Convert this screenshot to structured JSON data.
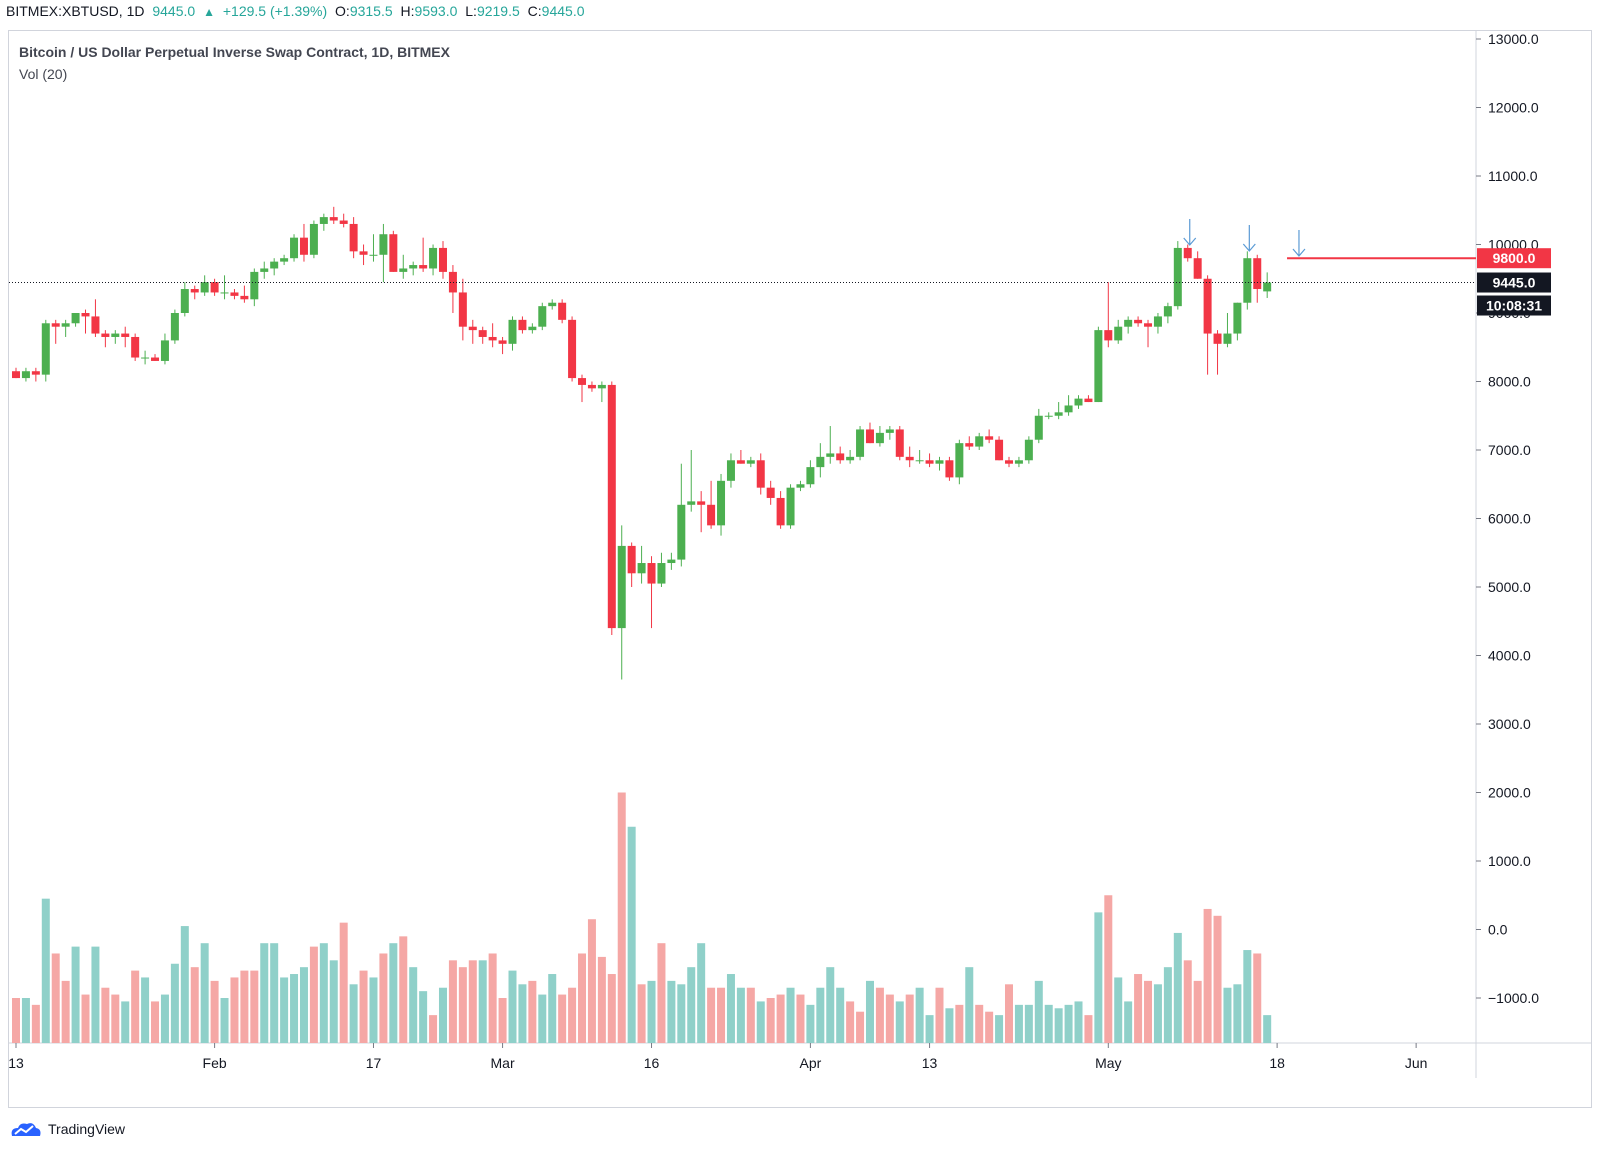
{
  "header": {
    "symbol": "BITMEX:XBTUSD, 1D",
    "last": "9445.0",
    "change": "+129.5 (+1.39%)",
    "o_label": "O:",
    "o": "9315.5",
    "h_label": "H:",
    "h": "9593.0",
    "l_label": "L:",
    "l": "9219.5",
    "c_label": "C:",
    "c": "9445.0"
  },
  "chart_title": "Bitcoin / US Dollar Perpetual Inverse Swap Contract, 1D, BITMEX",
  "volume_label": "Vol (20)",
  "brand": "TradingView",
  "colors": {
    "up": "#4caf50",
    "down": "#f23645",
    "vol_up": "#8fd0c9",
    "vol_down": "#f5a7a5",
    "line": "#f23645",
    "arrow": "#5b9bd5"
  },
  "chart_data": {
    "type": "candlestick",
    "title": "Bitcoin / US Dollar Perpetual Inverse Swap Contract, 1D, BITMEX",
    "y_ticks": [
      "13000.0",
      "12000.0",
      "11000.0",
      "10000.0",
      "9000.0",
      "8000.0",
      "7000.0",
      "6000.0",
      "5000.0",
      "4000.0",
      "3000.0",
      "2000.0",
      "1000.0",
      "0.0",
      "−1000.0"
    ],
    "x_ticks": [
      "13",
      "Feb",
      "17",
      "Mar",
      "16",
      "Apr",
      "13",
      "May",
      "18",
      "Jun"
    ],
    "ylim": [
      -1000,
      13000
    ],
    "candles": [
      [
        8150,
        8200,
        8050,
        8050
      ],
      [
        8050,
        8200,
        8000,
        8150
      ],
      [
        8150,
        8200,
        8000,
        8100
      ],
      [
        8100,
        8900,
        8000,
        8850
      ],
      [
        8850,
        8900,
        8550,
        8800
      ],
      [
        8800,
        8900,
        8650,
        8850
      ],
      [
        8850,
        9000,
        8800,
        9000
      ],
      [
        9000,
        9050,
        8700,
        8950
      ],
      [
        8950,
        9200,
        8650,
        8700
      ],
      [
        8700,
        8750,
        8500,
        8650
      ],
      [
        8650,
        8750,
        8550,
        8700
      ],
      [
        8700,
        8800,
        8500,
        8650
      ],
      [
        8650,
        8700,
        8300,
        8350
      ],
      [
        8350,
        8450,
        8250,
        8350
      ],
      [
        8350,
        8400,
        8300,
        8300
      ],
      [
        8300,
        8700,
        8250,
        8600
      ],
      [
        8600,
        9050,
        8550,
        9000
      ],
      [
        9000,
        9450,
        8950,
        9350
      ],
      [
        9350,
        9400,
        9200,
        9300
      ],
      [
        9300,
        9550,
        9250,
        9450
      ],
      [
        9450,
        9500,
        9250,
        9300
      ],
      [
        9300,
        9550,
        9200,
        9300
      ],
      [
        9300,
        9350,
        9200,
        9250
      ],
      [
        9250,
        9400,
        9150,
        9200
      ],
      [
        9200,
        9650,
        9100,
        9600
      ],
      [
        9600,
        9750,
        9500,
        9650
      ],
      [
        9650,
        9800,
        9550,
        9750
      ],
      [
        9750,
        9850,
        9700,
        9800
      ],
      [
        9800,
        10150,
        9750,
        10100
      ],
      [
        10100,
        10300,
        9750,
        9850
      ],
      [
        9850,
        10350,
        9800,
        10300
      ],
      [
        10300,
        10450,
        10200,
        10400
      ],
      [
        10400,
        10550,
        10300,
        10350
      ],
      [
        10350,
        10450,
        10250,
        10300
      ],
      [
        10300,
        10400,
        9800,
        9900
      ],
      [
        9900,
        10000,
        9700,
        9850
      ],
      [
        9850,
        10150,
        9750,
        9850
      ],
      [
        9850,
        10300,
        9450,
        10150
      ],
      [
        10150,
        10200,
        9600,
        9600
      ],
      [
        9600,
        9850,
        9500,
        9650
      ],
      [
        9650,
        9750,
        9550,
        9700
      ],
      [
        9700,
        10100,
        9600,
        9650
      ],
      [
        9650,
        10000,
        9550,
        9950
      ],
      [
        9950,
        10050,
        9500,
        9600
      ],
      [
        9600,
        9700,
        9000,
        9300
      ],
      [
        9300,
        9500,
        8600,
        8800
      ],
      [
        8800,
        8900,
        8550,
        8750
      ],
      [
        8750,
        8800,
        8550,
        8650
      ],
      [
        8650,
        8850,
        8500,
        8600
      ],
      [
        8600,
        8650,
        8400,
        8550
      ],
      [
        8550,
        8950,
        8450,
        8900
      ],
      [
        8900,
        8950,
        8700,
        8750
      ],
      [
        8750,
        8850,
        8700,
        8800
      ],
      [
        8800,
        9150,
        8750,
        9100
      ],
      [
        9100,
        9200,
        9050,
        9150
      ],
      [
        9150,
        9200,
        8850,
        8900
      ],
      [
        8900,
        8950,
        8000,
        8050
      ],
      [
        8050,
        8100,
        7700,
        7950
      ],
      [
        7950,
        8000,
        7850,
        7900
      ],
      [
        7900,
        8000,
        7700,
        7950
      ],
      [
        7950,
        8000,
        4300,
        4400
      ],
      [
        4400,
        5900,
        3650,
        5600
      ],
      [
        5600,
        5650,
        5000,
        5200
      ],
      [
        5200,
        5600,
        5050,
        5350
      ],
      [
        5350,
        5450,
        4400,
        5050
      ],
      [
        5050,
        5500,
        5000,
        5350
      ],
      [
        5350,
        5500,
        5250,
        5400
      ],
      [
        5400,
        6800,
        5300,
        6200
      ],
      [
        6200,
        7000,
        6100,
        6250
      ],
      [
        6250,
        6400,
        5800,
        6200
      ],
      [
        6200,
        6550,
        5850,
        5900
      ],
      [
        5900,
        6650,
        5750,
        6550
      ],
      [
        6550,
        6950,
        6450,
        6850
      ],
      [
        6850,
        7000,
        6800,
        6800
      ],
      [
        6800,
        6900,
        6750,
        6850
      ],
      [
        6850,
        6950,
        6350,
        6450
      ],
      [
        6450,
        6550,
        6200,
        6300
      ],
      [
        6300,
        6400,
        5850,
        5900
      ],
      [
        5900,
        6500,
        5850,
        6450
      ],
      [
        6450,
        6550,
        6400,
        6500
      ],
      [
        6500,
        6850,
        6450,
        6750
      ],
      [
        6750,
        7100,
        6600,
        6900
      ],
      [
        6900,
        7350,
        6800,
        6950
      ],
      [
        6950,
        7050,
        6800,
        6850
      ],
      [
        6850,
        7000,
        6800,
        6900
      ],
      [
        6900,
        7350,
        6850,
        7300
      ],
      [
        7300,
        7400,
        7100,
        7100
      ],
      [
        7100,
        7350,
        7050,
        7250
      ],
      [
        7250,
        7350,
        7150,
        7300
      ],
      [
        7300,
        7350,
        6850,
        6900
      ],
      [
        6900,
        7050,
        6750,
        6850
      ],
      [
        6850,
        7000,
        6800,
        6850
      ],
      [
        6850,
        6950,
        6750,
        6800
      ],
      [
        6800,
        6900,
        6700,
        6850
      ],
      [
        6850,
        6900,
        6550,
        6600
      ],
      [
        6600,
        7150,
        6500,
        7100
      ],
      [
        7100,
        7200,
        7000,
        7050
      ],
      [
        7050,
        7250,
        7000,
        7200
      ],
      [
        7200,
        7300,
        7100,
        7150
      ],
      [
        7150,
        7200,
        6850,
        6850
      ],
      [
        6850,
        6900,
        6750,
        6800
      ],
      [
        6800,
        6900,
        6750,
        6850
      ],
      [
        6850,
        7200,
        6800,
        7150
      ],
      [
        7150,
        7600,
        7100,
        7500
      ],
      [
        7500,
        7550,
        7450,
        7500
      ],
      [
        7500,
        7700,
        7450,
        7550
      ],
      [
        7550,
        7800,
        7500,
        7650
      ],
      [
        7650,
        7800,
        7600,
        7750
      ],
      [
        7750,
        7800,
        7700,
        7700
      ],
      [
        7700,
        8800,
        7700,
        8750
      ],
      [
        8750,
        9450,
        8500,
        8600
      ],
      [
        8600,
        8900,
        8550,
        8800
      ],
      [
        8800,
        8950,
        8700,
        8900
      ],
      [
        8900,
        8950,
        8800,
        8850
      ],
      [
        8850,
        8900,
        8500,
        8800
      ],
      [
        8800,
        9000,
        8700,
        8950
      ],
      [
        8950,
        9150,
        8850,
        9100
      ],
      [
        9100,
        10050,
        9050,
        9950
      ],
      [
        9950,
        10000,
        9750,
        9800
      ],
      [
        9800,
        9900,
        9500,
        9500
      ],
      [
        9500,
        9550,
        8100,
        8700
      ],
      [
        8700,
        8750,
        8100,
        8550
      ],
      [
        8550,
        9000,
        8500,
        8700
      ],
      [
        8700,
        9150,
        8600,
        9150
      ],
      [
        9150,
        9900,
        9050,
        9800
      ],
      [
        9800,
        9850,
        9150,
        9350
      ],
      [
        9315.5,
        9593,
        9219.5,
        9445
      ]
    ],
    "volume": [
      [
        0,
        "d",
        -1000
      ],
      [
        1,
        "u",
        -1000
      ],
      [
        2,
        "d",
        -1100
      ],
      [
        3,
        "u",
        450
      ],
      [
        4,
        "d",
        -350
      ],
      [
        5,
        "d",
        -750
      ],
      [
        6,
        "u",
        -250
      ],
      [
        7,
        "d",
        -950
      ],
      [
        8,
        "u",
        -250
      ],
      [
        9,
        "d",
        -850
      ],
      [
        10,
        "d",
        -950
      ],
      [
        11,
        "u",
        -1050
      ],
      [
        12,
        "d",
        -600
      ],
      [
        13,
        "u",
        -700
      ],
      [
        14,
        "d",
        -1050
      ],
      [
        15,
        "u",
        -950
      ],
      [
        16,
        "u",
        -500
      ],
      [
        17,
        "u",
        50
      ],
      [
        18,
        "d",
        -550
      ],
      [
        19,
        "u",
        -200
      ],
      [
        20,
        "d",
        -750
      ],
      [
        21,
        "u",
        -1000
      ],
      [
        22,
        "d",
        -700
      ],
      [
        23,
        "d",
        -600
      ],
      [
        24,
        "d",
        -600
      ],
      [
        25,
        "u",
        -200
      ],
      [
        26,
        "u",
        -200
      ],
      [
        27,
        "u",
        -700
      ],
      [
        28,
        "u",
        -650
      ],
      [
        29,
        "u",
        -550
      ],
      [
        30,
        "d",
        -250
      ],
      [
        31,
        "u",
        -200
      ],
      [
        32,
        "u",
        -450
      ],
      [
        33,
        "d",
        100
      ],
      [
        34,
        "u",
        -800
      ],
      [
        35,
        "d",
        -600
      ],
      [
        36,
        "u",
        -700
      ],
      [
        37,
        "d",
        -350
      ],
      [
        38,
        "u",
        -200
      ],
      [
        39,
        "d",
        -100
      ],
      [
        40,
        "u",
        -550
      ],
      [
        41,
        "u",
        -900
      ],
      [
        42,
        "d",
        -1250
      ],
      [
        43,
        "u",
        -850
      ],
      [
        44,
        "d",
        -450
      ],
      [
        45,
        "d",
        -550
      ],
      [
        46,
        "d",
        -450
      ],
      [
        47,
        "u",
        -450
      ],
      [
        48,
        "d",
        -350
      ],
      [
        49,
        "d",
        -1000
      ],
      [
        50,
        "u",
        -600
      ],
      [
        51,
        "u",
        -800
      ],
      [
        52,
        "d",
        -750
      ],
      [
        53,
        "u",
        -950
      ],
      [
        54,
        "u",
        -650
      ],
      [
        55,
        "d",
        -950
      ],
      [
        56,
        "d",
        -850
      ],
      [
        57,
        "d",
        -350
      ],
      [
        58,
        "d",
        150
      ],
      [
        59,
        "d",
        -400
      ],
      [
        60,
        "d",
        -650
      ],
      [
        61,
        "d",
        2000
      ],
      [
        62,
        "u",
        1500
      ],
      [
        63,
        "d",
        -800
      ],
      [
        64,
        "u",
        -750
      ],
      [
        65,
        "d",
        -200
      ],
      [
        66,
        "u",
        -750
      ],
      [
        67,
        "u",
        -800
      ],
      [
        68,
        "u",
        -550
      ],
      [
        69,
        "u",
        -200
      ],
      [
        70,
        "d",
        -850
      ],
      [
        71,
        "d",
        -850
      ],
      [
        72,
        "u",
        -650
      ],
      [
        73,
        "u",
        -850
      ],
      [
        74,
        "d",
        -850
      ],
      [
        75,
        "u",
        -1050
      ],
      [
        76,
        "d",
        -1000
      ],
      [
        77,
        "d",
        -950
      ],
      [
        78,
        "u",
        -850
      ],
      [
        79,
        "d",
        -950
      ],
      [
        80,
        "u",
        -1100
      ],
      [
        81,
        "u",
        -850
      ],
      [
        82,
        "u",
        -550
      ],
      [
        83,
        "u",
        -850
      ],
      [
        84,
        "d",
        -1050
      ],
      [
        85,
        "d",
        -1200
      ],
      [
        86,
        "u",
        -750
      ],
      [
        87,
        "d",
        -850
      ],
      [
        88,
        "d",
        -950
      ],
      [
        89,
        "u",
        -1050
      ],
      [
        90,
        "d",
        -950
      ],
      [
        91,
        "u",
        -850
      ],
      [
        92,
        "u",
        -1250
      ],
      [
        93,
        "d",
        -850
      ],
      [
        94,
        "u",
        -1150
      ],
      [
        95,
        "d",
        -1100
      ],
      [
        96,
        "u",
        -550
      ],
      [
        97,
        "d",
        -1100
      ],
      [
        98,
        "d",
        -1200
      ],
      [
        99,
        "u",
        -1250
      ],
      [
        100,
        "d",
        -800
      ],
      [
        101,
        "u",
        -1100
      ],
      [
        102,
        "u",
        -1100
      ],
      [
        103,
        "u",
        -750
      ],
      [
        104,
        "u",
        -1100
      ],
      [
        105,
        "u",
        -1150
      ],
      [
        106,
        "u",
        -1100
      ],
      [
        107,
        "u",
        -1050
      ],
      [
        108,
        "d",
        -1250
      ],
      [
        109,
        "u",
        250
      ],
      [
        110,
        "d",
        500
      ],
      [
        111,
        "u",
        -700
      ],
      [
        112,
        "u",
        -1050
      ],
      [
        113,
        "d",
        -650
      ],
      [
        114,
        "d",
        -750
      ],
      [
        115,
        "u",
        -800
      ],
      [
        116,
        "u",
        -550
      ],
      [
        117,
        "u",
        -50
      ],
      [
        118,
        "d",
        -450
      ],
      [
        119,
        "d",
        -750
      ],
      [
        120,
        "d",
        300
      ],
      [
        121,
        "d",
        200
      ],
      [
        122,
        "u",
        -850
      ],
      [
        123,
        "u",
        -800
      ],
      [
        124,
        "u",
        -300
      ],
      [
        125,
        "d",
        -350
      ],
      [
        126,
        "u",
        -1250
      ]
    ],
    "resistance_level": 9800,
    "price_labels": {
      "resistance": "9800.0",
      "last": "9445.0",
      "countdown": "10:08:31"
    }
  }
}
